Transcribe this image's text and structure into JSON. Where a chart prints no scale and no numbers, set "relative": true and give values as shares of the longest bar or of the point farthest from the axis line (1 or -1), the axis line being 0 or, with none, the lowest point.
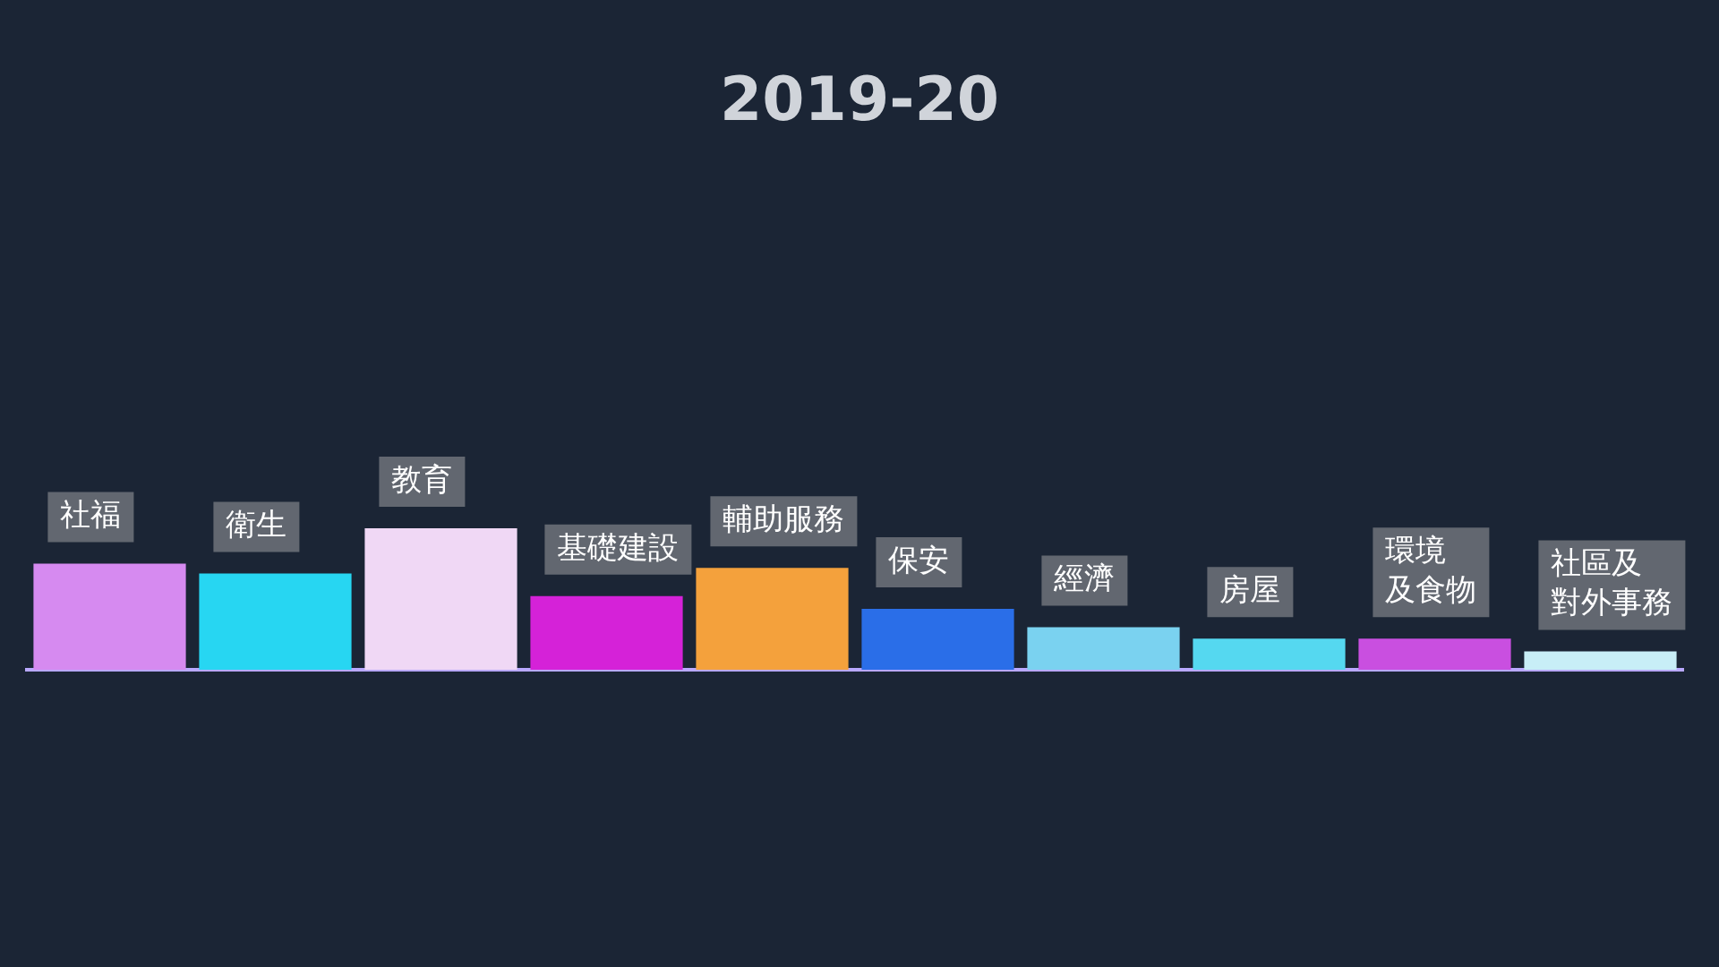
{
  "chart_data": {
    "type": "bar",
    "title": "2019-20",
    "relative": true,
    "categories": [
      "社福",
      "衛生",
      "教育",
      "基礎建設",
      "輔助服務",
      "保安",
      "經濟",
      "房屋",
      "環境及食物",
      "社區及對外事務"
    ],
    "values": [
      0.75,
      0.68,
      1,
      0.52,
      0.72,
      0.43,
      0.3,
      0.22,
      0.22,
      0.13
    ],
    "colors": [
      "#d68af0",
      "#27d6f2",
      "#f0d8f5",
      "#d522d8",
      "#f4a13c",
      "#2a6ee8",
      "#7ad2f0",
      "#55d8f0",
      "#c94fe0",
      "#c8eef7"
    ],
    "grid": false,
    "legend": false
  }
}
